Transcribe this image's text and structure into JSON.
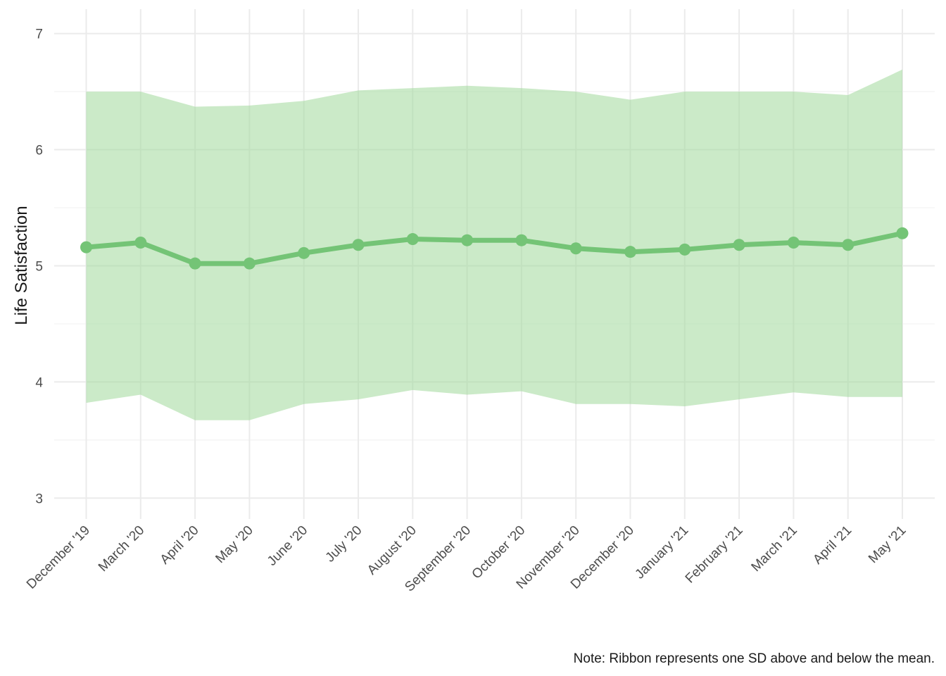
{
  "chart_data": {
    "type": "line",
    "ylabel": "Life Satisfaction",
    "xlabel": "",
    "caption": "Note: Ribbon represents one SD above and below the mean.",
    "categories": [
      "December '19",
      "March '20",
      "April '20",
      "May '20",
      "June '20",
      "July '20",
      "August '20",
      "September '20",
      "October '20",
      "November '20",
      "December '20",
      "January '21",
      "February '21",
      "March '21",
      "April '21",
      "May '21"
    ],
    "series": [
      {
        "values": [
          5.16,
          5.2,
          5.02,
          5.02,
          5.11,
          5.18,
          5.23,
          5.22,
          5.22,
          5.15,
          5.12,
          5.14,
          5.18,
          5.2,
          5.18,
          5.28
        ],
        "ribbon_upper": [
          6.5,
          6.5,
          6.37,
          6.38,
          6.42,
          6.51,
          6.53,
          6.55,
          6.53,
          6.5,
          6.43,
          6.5,
          6.5,
          6.5,
          6.47,
          6.69
        ],
        "ribbon_lower": [
          3.82,
          3.89,
          3.67,
          3.67,
          3.81,
          3.85,
          3.93,
          3.89,
          3.92,
          3.81,
          3.81,
          3.79,
          3.85,
          3.91,
          3.87,
          3.87
        ]
      }
    ],
    "ylim": [
      2.82,
      7.21
    ],
    "yticks": [
      3,
      4,
      5,
      6,
      7
    ],
    "ytick_labels": [
      "3",
      "4",
      "5",
      "6",
      "7"
    ],
    "grid": true,
    "legend": "none",
    "colors": {
      "line": "#74c476",
      "ribbon": "#a1d99b",
      "grid_major": "#ebebeb",
      "grid_minor": "#f3f3f3"
    }
  }
}
